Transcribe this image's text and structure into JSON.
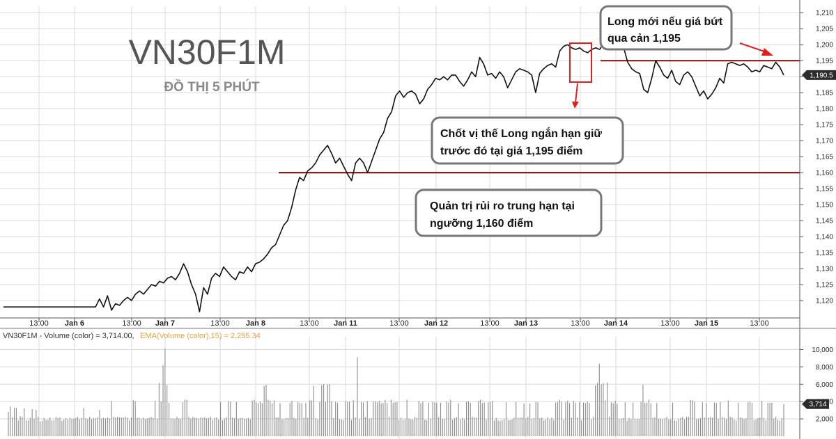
{
  "title": "VN30F1M",
  "subtitle": "ĐỒ THỊ 5 PHÚT",
  "colors": {
    "price_line": "#111111",
    "level_line": "#8b1a1a",
    "annotation_arrow": "#e02020",
    "volume_bar": "#8c8c8c",
    "grid": "#d9d9d9",
    "badge_bg": "#2b2b2b"
  },
  "chart_data": [
    {
      "type": "line",
      "series_label": "VN30F1M",
      "ylim": [
        1115,
        1212
      ],
      "yticks": [
        1120,
        1125,
        1130,
        1135,
        1140,
        1145,
        1150,
        1155,
        1160,
        1165,
        1170,
        1175,
        1180,
        1185,
        1190,
        1195,
        1200,
        1205,
        1210
      ],
      "ytick_labels": [
        "1,120",
        "1,125",
        "1,130",
        "1,135",
        "1,140",
        "1,145",
        "1,150",
        "1,155",
        "1,160",
        "1,165",
        "1,170",
        "1,175",
        "1,180",
        "1,185",
        "1,190",
        "1,195",
        "1,200",
        "1,205",
        "1,210"
      ],
      "x_labels": [
        "13:00",
        "Jan 6",
        "13:00",
        "Jan 7",
        "13:00",
        "Jan 8",
        "13:00",
        "Jan 11",
        "13:00",
        "Jan 12",
        "13:00",
        "Jan 13",
        "13:00",
        "Jan 14",
        "13:00",
        "Jan 15",
        "13:00"
      ],
      "x_label_bold": [
        false,
        true,
        false,
        true,
        false,
        true,
        false,
        true,
        false,
        true,
        false,
        true,
        false,
        true,
        false,
        true,
        false
      ],
      "last_value": 1190.5,
      "last_value_label": "1,190.5",
      "grid": true,
      "values": [
        1118.0,
        1118.0,
        1118.0,
        1118.0,
        1118.0,
        1118.0,
        1118.0,
        1118.0,
        1118.0,
        1118.0,
        1118.0,
        1118.0,
        1118.0,
        1118.0,
        1118.0,
        1118.0,
        1118.0,
        1118.0,
        1118.0,
        1118.0,
        1118.0,
        1118.0,
        1118.0,
        1118.0,
        1120.5,
        1118.0,
        1121.5,
        1117.0,
        1119.0,
        1118.5,
        1120.0,
        1121.0,
        1120.0,
        1122.0,
        1123.0,
        1122.0,
        1123.5,
        1125.0,
        1124.5,
        1126.0,
        1125.5,
        1127.0,
        1127.5,
        1126.5,
        1128.5,
        1131.5,
        1129.0,
        1125.0,
        1122.0,
        1116.5,
        1124.0,
        1122.0,
        1127.0,
        1128.5,
        1127.5,
        1130.5,
        1129.0,
        1127.5,
        1126.5,
        1129.0,
        1128.5,
        1130.5,
        1129.0,
        1131.5,
        1132.0,
        1133.0,
        1134.5,
        1136.5,
        1137.5,
        1140.5,
        1143.5,
        1145.0,
        1149.0,
        1154.5,
        1158.5,
        1157.5,
        1160.5,
        1161.5,
        1163.0,
        1165.5,
        1167.0,
        1168.5,
        1166.0,
        1163.0,
        1164.5,
        1162.0,
        1159.5,
        1157.5,
        1163.0,
        1164.5,
        1163.0,
        1160.0,
        1163.5,
        1167.0,
        1170.5,
        1172.5,
        1177.0,
        1179.0,
        1184.0,
        1185.5,
        1183.5,
        1185.0,
        1185.5,
        1184.5,
        1181.5,
        1183.0,
        1186.0,
        1187.5,
        1189.5,
        1189.0,
        1190.0,
        1189.0,
        1190.5,
        1190.5,
        1188.5,
        1187.0,
        1189.0,
        1191.5,
        1190.0,
        1196.0,
        1194.0,
        1190.5,
        1191.0,
        1189.5,
        1191.5,
        1190.0,
        1186.5,
        1189.0,
        1191.5,
        1192.5,
        1192.0,
        1191.5,
        1190.5,
        1185.0,
        1191.0,
        1192.5,
        1193.5,
        1194.0,
        1193.0,
        1198.0,
        1199.5,
        1200.0,
        1199.0,
        1198.5,
        1199.0,
        1198.0,
        1197.5,
        1198.5,
        1199.0,
        1198.5,
        1200.5,
        1201.0,
        1199.5,
        1198.5,
        1200.0,
        1199.0,
        1194.5,
        1192.5,
        1191.5,
        1191.0,
        1186.0,
        1185.0,
        1189.5,
        1195.0,
        1193.0,
        1190.5,
        1189.5,
        1192.0,
        1188.5,
        1187.5,
        1190.5,
        1191.5,
        1190.0,
        1187.0,
        1184.0,
        1185.5,
        1183.0,
        1184.5,
        1186.5,
        1189.5,
        1188.0,
        1194.0,
        1194.5,
        1194.0,
        1193.5,
        1194.0,
        1193.0,
        1191.5,
        1192.0,
        1191.5,
        1193.5,
        1193.0,
        1192.5,
        1194.5,
        1193.0,
        1190.5
      ]
    },
    {
      "type": "bar",
      "title": "VN30F1M - Volume (color) = 3,714.00,",
      "ema_label": "EMA(Volume (color),15) = 2,255.34",
      "ylim": [
        0,
        11000
      ],
      "yticks": [
        2000,
        4000,
        6000,
        8000,
        10000
      ],
      "ytick_labels": [
        "2,000",
        "4,000",
        "6,000",
        "8,000",
        "10,000"
      ],
      "last_value_label": "3,714",
      "values": [
        2813,
        3419,
        2209,
        3283,
        3271,
        1823,
        2316,
        2211,
        3239,
        1833,
        1833,
        2111,
        3118,
        2016,
        3038,
        2219,
        1707,
        1788,
        2104,
        1871,
        1914,
        2165,
        1798,
        1859,
        2216,
        2105,
        2145,
        1764,
        1929,
        2088,
        1952,
        2151,
        1978,
        2024,
        2095,
        2238,
        1944,
        2117,
        3262,
        2078,
        1981,
        2237,
        1949,
        2115,
        2065,
        2207,
        3027,
        2045,
        2134,
        2049,
        2177,
        2065,
        4060,
        2238,
        2151,
        2234,
        2198,
        2171,
        2141,
        2256,
        2149,
        1822,
        2170,
        4158,
        4048,
        2121,
        2144,
        1992,
        2147,
        1962,
        2062,
        2139,
        2221,
        2092,
        4095,
        2009,
        6137,
        4029,
        8210,
        10090,
        5905,
        3836,
        2061,
        2031,
        2033,
        2236,
        2061,
        2035,
        3917,
        4227,
        4186,
        2249,
        2015,
        2235,
        2129,
        2100,
        2011,
        2158,
        2110,
        2192,
        2061,
        2106,
        2240,
        1876,
        2127,
        2165,
        1922,
        3920,
        1852,
        2045,
        2194,
        4090,
        3951,
        2137,
        2079,
        3951,
        2021,
        2109,
        2121,
        2004,
        2012,
        2122,
        1958,
        4120,
        4224,
        3908,
        3793,
        4009,
        3796,
        5807,
        5934,
        4210,
        4096,
        3804,
        4131,
        2176,
        2166,
        3819,
        2003,
        1965,
        2114,
        2086,
        3862,
        4100,
        2110,
        2005,
        3985,
        3821,
        3810,
        2128,
        3831,
        2120,
        4142,
        4127,
        5817,
        2065,
        1939,
        3970,
        5893,
        6017,
        3941,
        5954,
        5997,
        4043,
        2083,
        3955,
        3868,
        1961,
        1918,
        1860,
        4070,
        3970,
        3977,
        1882,
        4151,
        2156,
        9108,
        1985,
        3963,
        3899,
        2226,
        4047,
        1999,
        2112,
        3986,
        4024,
        3918,
        4111,
        3805,
        3841,
        4177,
        3840,
        2232,
        4194,
        3858,
        3910,
        3947,
        1909,
        2126,
        1882,
        1961,
        4197,
        2027,
        1939,
        1937,
        2232,
        2080,
        4087,
        3804,
        3973,
        1914,
        1855,
        3850,
        2034,
        3950,
        3909,
        3873,
        2217,
        3856,
        2019,
        1995,
        4006,
        3871,
        4203,
        1901,
        2080,
        2197,
        3811,
        1932,
        2118,
        1948,
        3964,
        4054,
        3842,
        2238,
        2181,
        2164,
        4074,
        4181,
        3830,
        3897,
        1938,
        3908,
        3965,
        4075,
        1826,
        2105,
        1823,
        1794,
        1865,
        1982,
        3920,
        1844,
        1841,
        1919,
        2147,
        3954,
        2133,
        2144,
        2184,
        3779,
        2066,
        2242,
        3768,
        2005,
        2107,
        3960,
        3909,
        2062,
        2157,
        1830,
        1945,
        2191,
        1946,
        2149,
        1898,
        3887,
        3966,
        4187,
        3985,
        1919,
        3908,
        4131,
        3823,
        2119,
        4083,
        3851,
        2172,
        3924,
        1863,
        3889,
        3837,
        3986,
        3824,
        1959,
        2246,
        5865,
        6123,
        8378,
        5980,
        6119,
        4124,
        6217,
        2248,
        3908,
        3799,
        4111,
        3769,
        2012,
        2013,
        2102,
        3909,
        1795,
        2112,
        1978,
        3882,
        2009,
        2032,
        1995,
        3958,
        5937,
        3861,
        3869,
        4208,
        3784,
        2111,
        2181,
        3835,
        2002,
        2039,
        1941,
        2058,
        2217,
        1922,
        1970,
        3882,
        1833,
        1762,
        1989,
        2123,
        2238,
        1955,
        2224,
        2235,
        4173,
        4157,
        3960,
        1986,
        2016,
        2115,
        3947,
        2155,
        3818,
        2157,
        2217,
        2128,
        3896,
        3827,
        1994,
        3954,
        2218,
        2117,
        1961,
        4139,
        2244,
        2170,
        1917,
        1813,
        3856,
        2164,
        2106,
        1953,
        2063,
        3919,
        3977,
        3858,
        1841,
        1925,
        2084,
        2162,
        4108,
        2099,
        1852,
        3852,
        3866,
        3883,
        2010,
        2243,
        1889,
        1799,
        2069,
        3714
      ]
    }
  ],
  "annotations": {
    "title": "VN30F1M",
    "subtitle": "ĐỒ THỊ 5 PHÚT",
    "box1": {
      "lines": [
        "Long mới nếu giá bứt",
        "qua cản 1,195"
      ]
    },
    "box2": {
      "lines": [
        "Chốt vị thế Long ngắn hạn giữ",
        "trước đó tại giá 1,195 điểm"
      ]
    },
    "box3": {
      "lines": [
        "Quản trị rủi ro trung hạn tại",
        "ngưỡng 1,160 điểm"
      ]
    },
    "resistance_level": 1195,
    "support_level": 1160
  }
}
